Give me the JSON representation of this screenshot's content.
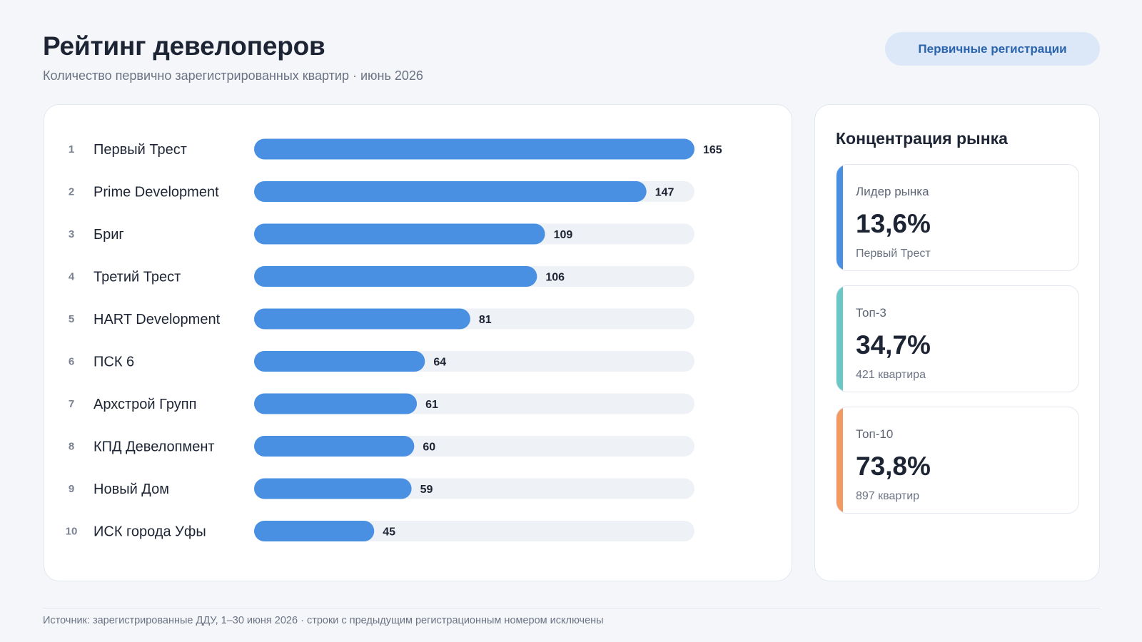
{
  "header": {
    "title": "Рейтинг девелоперов",
    "subtitle": "Количество первично зарегистрированных квартир · июнь 2026",
    "badge": "Первичные регистрации"
  },
  "chart_data": {
    "type": "bar",
    "orientation": "horizontal",
    "ranks": [
      "1",
      "2",
      "3",
      "4",
      "5",
      "6",
      "7",
      "8",
      "9",
      "10"
    ],
    "categories": [
      "Первый Трест",
      "Prime Development",
      "Бриг",
      "Третий Трест",
      "HART Development",
      "ПСК 6",
      "Архстрой Групп",
      "КПД Девелопмент",
      "Новый Дом",
      "ИСК города Уфы"
    ],
    "values": [
      165,
      147,
      109,
      106,
      81,
      64,
      61,
      60,
      59,
      45
    ],
    "xlim": [
      0,
      165
    ],
    "grid": false,
    "colors": {
      "bar": "#4a90e2",
      "track": "#eef1f6"
    }
  },
  "concentration": {
    "title": "Концентрация рынка",
    "metrics": [
      {
        "label": "Лидер рынка",
        "value": "13,6%",
        "note": "Первый Трест",
        "color": "#4a90e2"
      },
      {
        "label": "Топ-3",
        "value": "34,7%",
        "note": "421 квартира",
        "color": "#6cc7c7"
      },
      {
        "label": "Топ-10",
        "value": "73,8%",
        "note": "897 квартир",
        "color": "#f39a62"
      }
    ]
  },
  "footer": {
    "source": "Источник: зарегистрированные ДДУ, 1–30 июня 2026 · строки с предыдущим регистрационным номером исключены"
  }
}
